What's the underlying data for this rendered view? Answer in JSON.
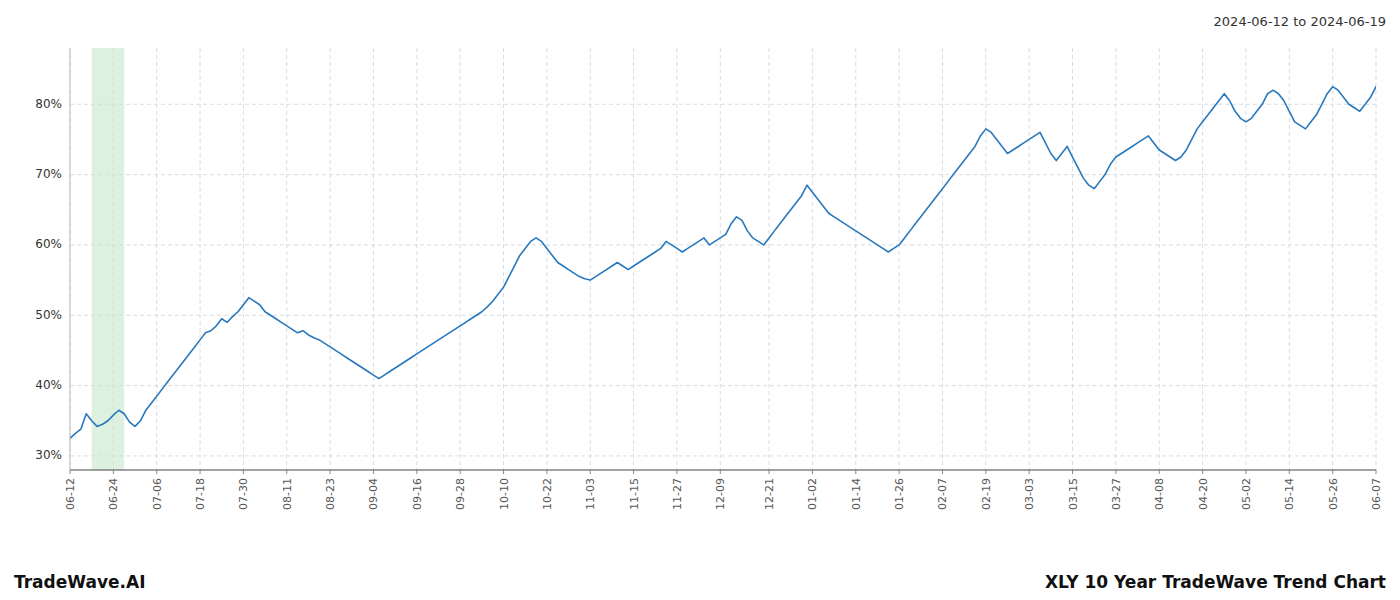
{
  "chart_data": {
    "type": "line",
    "title": "XLY 10 Year TradeWave Trend Chart",
    "subtitle": "2024-06-12 to 2024-06-19",
    "annotations": [
      "TradeWave.AI"
    ],
    "color": "#2878bd",
    "grid": true,
    "ylim": [
      28,
      88
    ],
    "yticks": [
      {
        "value": 30,
        "label": "30%"
      },
      {
        "value": 40,
        "label": "40%"
      },
      {
        "value": 50,
        "label": "50%"
      },
      {
        "value": 60,
        "label": "60%"
      },
      {
        "value": 70,
        "label": "70%"
      },
      {
        "value": 80,
        "label": "80%"
      }
    ],
    "shaded_range": {
      "start": 4,
      "end": 10,
      "color": "#c8e6c9"
    },
    "categories": [
      "06-12",
      null,
      null,
      null,
      null,
      null,
      null,
      null,
      "06-24",
      null,
      null,
      null,
      null,
      null,
      null,
      null,
      "07-06",
      null,
      null,
      null,
      null,
      null,
      null,
      null,
      "07-18",
      null,
      null,
      null,
      null,
      null,
      null,
      null,
      "07-30",
      null,
      null,
      null,
      null,
      null,
      null,
      null,
      "08-11",
      null,
      null,
      null,
      null,
      null,
      null,
      null,
      "08-23",
      null,
      null,
      null,
      null,
      null,
      null,
      null,
      "09-04",
      null,
      null,
      null,
      null,
      null,
      null,
      null,
      "09-16",
      null,
      null,
      null,
      null,
      null,
      null,
      null,
      "09-28",
      null,
      null,
      null,
      null,
      null,
      null,
      null,
      "10-10",
      null,
      null,
      null,
      null,
      null,
      null,
      null,
      "10-22",
      null,
      null,
      null,
      null,
      null,
      null,
      null,
      "11-03",
      null,
      null,
      null,
      null,
      null,
      null,
      null,
      "11-15",
      null,
      null,
      null,
      null,
      null,
      null,
      null,
      "11-27",
      null,
      null,
      null,
      null,
      null,
      null,
      null,
      "12-09",
      null,
      null,
      null,
      null,
      null,
      null,
      null,
      null,
      "12-21",
      null,
      null,
      null,
      null,
      null,
      null,
      null,
      "01-02",
      null,
      null,
      null,
      null,
      null,
      null,
      null,
      "01-14",
      null,
      null,
      null,
      null,
      null,
      null,
      null,
      "01-26",
      null,
      null,
      null,
      null,
      null,
      null,
      null,
      "02-07",
      null,
      null,
      null,
      null,
      null,
      null,
      null,
      "02-19",
      null,
      null,
      null,
      null,
      null,
      null,
      null,
      "03-03",
      null,
      null,
      null,
      null,
      null,
      null,
      null,
      "03-15",
      null,
      null,
      null,
      null,
      null,
      null,
      null,
      "03-27",
      null,
      null,
      null,
      null,
      null,
      null,
      null,
      "04-08",
      null,
      null,
      null,
      null,
      null,
      null,
      null,
      "04-20",
      null,
      null,
      null,
      null,
      null,
      null,
      null,
      "05-02",
      null,
      null,
      null,
      null,
      null,
      null,
      null,
      "05-14",
      null,
      null,
      null,
      null,
      null,
      null,
      null,
      "05-26",
      null,
      null,
      null,
      null,
      null,
      null,
      null,
      "06-07"
    ],
    "values": [
      32.5,
      33.2,
      33.8,
      36.0,
      35.0,
      34.2,
      34.5,
      35.0,
      35.8,
      36.5,
      36.0,
      34.8,
      34.2,
      35.0,
      36.5,
      37.5,
      38.5,
      39.5,
      40.5,
      41.5,
      42.5,
      43.5,
      44.5,
      45.5,
      46.5,
      47.5,
      47.8,
      48.5,
      49.5,
      49.0,
      49.8,
      50.5,
      51.5,
      52.5,
      52.0,
      51.5,
      50.5,
      50.0,
      49.5,
      49.0,
      48.5,
      48.0,
      47.5,
      47.8,
      47.2,
      46.8,
      46.5,
      46.0,
      45.5,
      45.0,
      44.5,
      44.0,
      43.5,
      43.0,
      42.5,
      42.0,
      41.5,
      41.0,
      41.5,
      42.0,
      42.5,
      43.0,
      43.5,
      44.0,
      44.5,
      45.0,
      45.5,
      46.0,
      46.5,
      47.0,
      47.5,
      48.0,
      48.5,
      49.0,
      49.5,
      50.0,
      50.5,
      51.2,
      52.0,
      53.0,
      54.0,
      55.5,
      57.0,
      58.5,
      59.5,
      60.5,
      61.0,
      60.5,
      59.5,
      58.5,
      57.5,
      57.0,
      56.5,
      56.0,
      55.5,
      55.2,
      55.0,
      55.5,
      56.0,
      56.5,
      57.0,
      57.5,
      57.0,
      56.5,
      57.0,
      57.5,
      58.0,
      58.5,
      59.0,
      59.5,
      60.5,
      60.0,
      59.5,
      59.0,
      59.5,
      60.0,
      60.5,
      61.0,
      60.0,
      60.5,
      61.0,
      61.5,
      63.0,
      64.0,
      63.5,
      62.0,
      61.0,
      60.5,
      60.0,
      61.0,
      62.0,
      63.0,
      64.0,
      65.0,
      66.0,
      67.0,
      68.5,
      67.5,
      66.5,
      65.5,
      64.5,
      64.0,
      63.5,
      63.0,
      62.5,
      62.0,
      61.5,
      61.0,
      60.5,
      60.0,
      59.5,
      59.0,
      59.5,
      60.0,
      61.0,
      62.0,
      63.0,
      64.0,
      65.0,
      66.0,
      67.0,
      68.0,
      69.0,
      70.0,
      71.0,
      72.0,
      73.0,
      74.0,
      75.5,
      76.5,
      76.0,
      75.0,
      74.0,
      73.0,
      73.5,
      74.0,
      74.5,
      75.0,
      75.5,
      76.0,
      74.5,
      73.0,
      72.0,
      73.0,
      74.0,
      72.5,
      71.0,
      69.5,
      68.5,
      68.0,
      69.0,
      70.0,
      71.5,
      72.5,
      73.0,
      73.5,
      74.0,
      74.5,
      75.0,
      75.5,
      74.5,
      73.5,
      73.0,
      72.5,
      72.0,
      72.5,
      73.5,
      75.0,
      76.5,
      77.5,
      78.5,
      79.5,
      80.5,
      81.5,
      80.5,
      79.0,
      78.0,
      77.5,
      78.0,
      79.0,
      80.0,
      81.5,
      82.0,
      81.5,
      80.5,
      79.0,
      77.5,
      77.0,
      76.5,
      77.5,
      78.5,
      80.0,
      81.5,
      82.5,
      82.0,
      81.0,
      80.0,
      79.5,
      79.0,
      80.0,
      81.0,
      82.5
    ]
  }
}
